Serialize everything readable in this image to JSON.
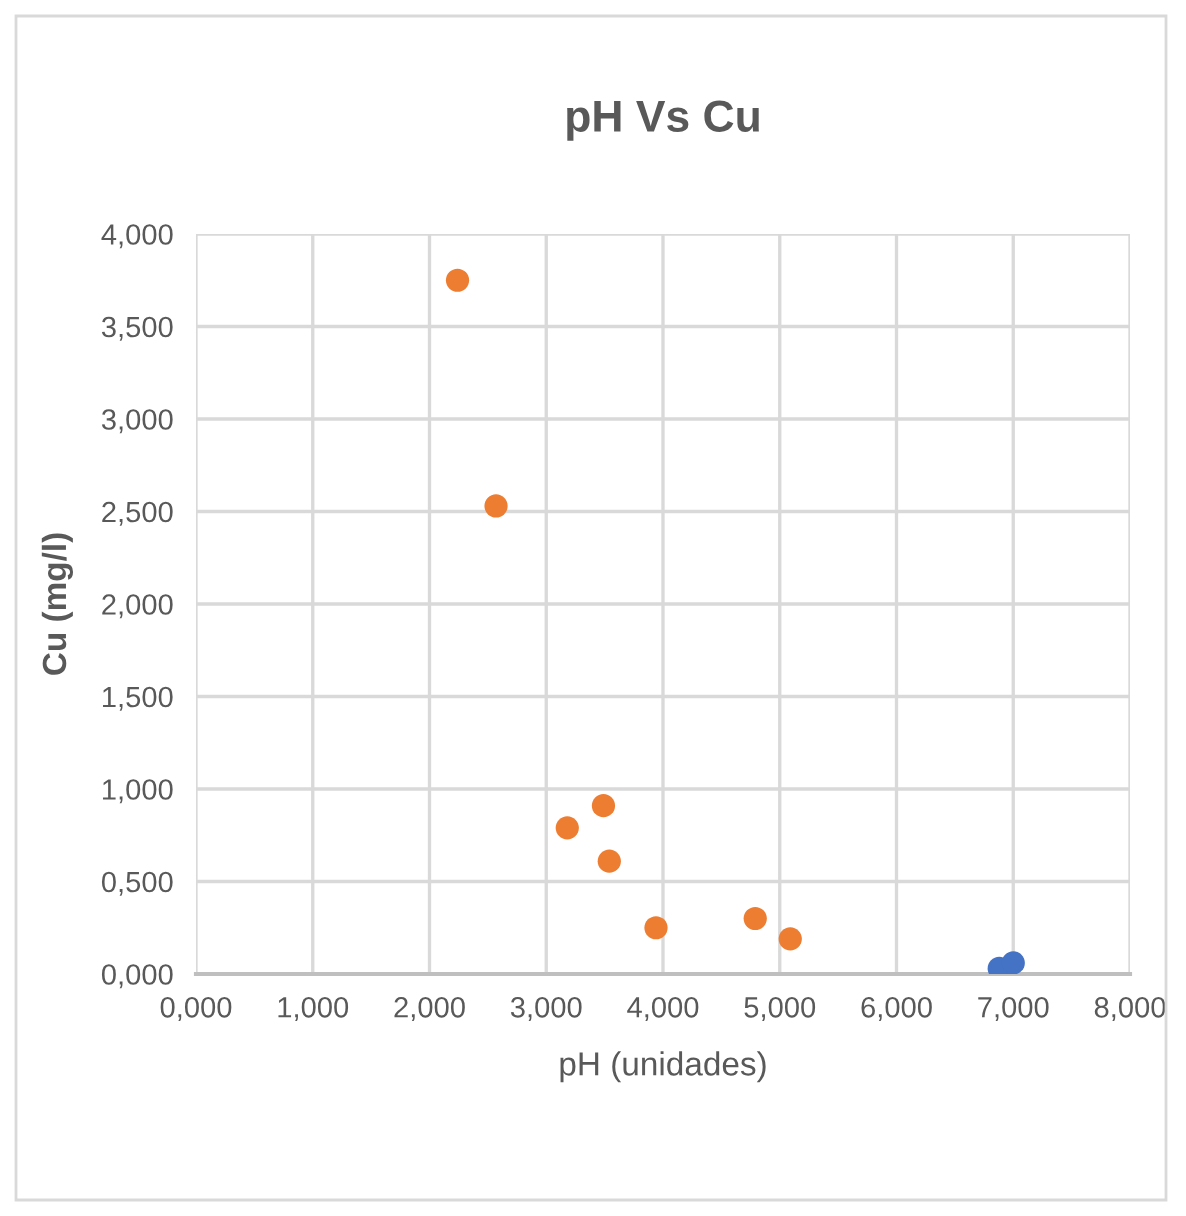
{
  "chart_data": {
    "type": "scatter",
    "title": "pH Vs Cu",
    "xlabel": "pH (unidades)",
    "ylabel": "Cu (mg/l)",
    "series": [
      {
        "color": "#ed7d31",
        "x": [
          2.24,
          2.57,
          3.18,
          3.49,
          3.54,
          3.94,
          4.79,
          5.09
        ],
        "values": [
          3.75,
          2.53,
          0.79,
          0.91,
          0.61,
          0.25,
          0.3,
          0.19
        ]
      },
      {
        "color": "#4472c4",
        "x": [
          6.88,
          7.0
        ],
        "values": [
          0.03,
          0.06
        ]
      }
    ],
    "xlim": [
      0,
      8
    ],
    "ylim": [
      0,
      4
    ],
    "xticks": [
      {
        "value": 0,
        "label": "0,000"
      },
      {
        "value": 1,
        "label": "1,000"
      },
      {
        "value": 2,
        "label": "2,000"
      },
      {
        "value": 3,
        "label": "3,000"
      },
      {
        "value": 4,
        "label": "4,000"
      },
      {
        "value": 5,
        "label": "5,000"
      },
      {
        "value": 6,
        "label": "6,000"
      },
      {
        "value": 7,
        "label": "7,000"
      },
      {
        "value": 8,
        "label": "8,000"
      }
    ],
    "yticks": [
      {
        "value": 0,
        "label": "0,000"
      },
      {
        "value": 0.5,
        "label": "0,500"
      },
      {
        "value": 1,
        "label": "1,000"
      },
      {
        "value": 1.5,
        "label": "1,500"
      },
      {
        "value": 2,
        "label": "2,000"
      },
      {
        "value": 2.5,
        "label": "2,500"
      },
      {
        "value": 3,
        "label": "3,000"
      },
      {
        "value": 3.5,
        "label": "3,500"
      },
      {
        "value": 4,
        "label": "4,000"
      }
    ],
    "grid": true,
    "marker": "circle",
    "legend": false
  }
}
